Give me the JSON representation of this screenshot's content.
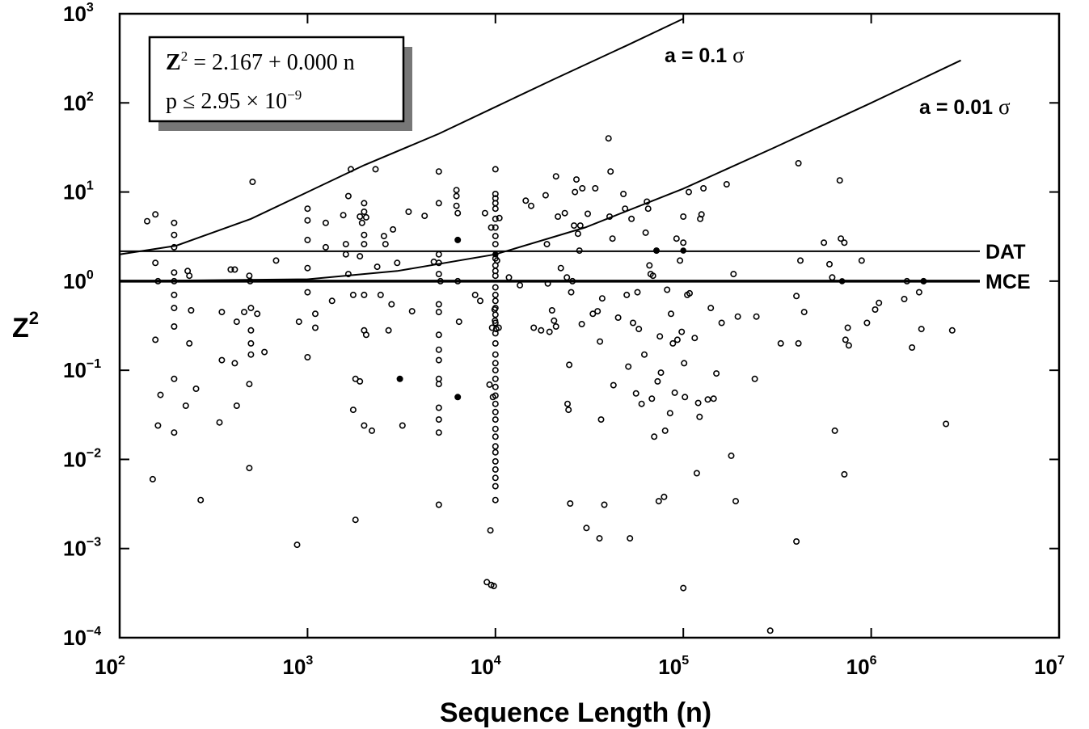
{
  "chart_data": {
    "type": "scatter",
    "x_scale": "log",
    "y_scale": "log",
    "xlim": [
      100,
      10000000
    ],
    "ylim": [
      0.0001,
      1000
    ],
    "xlabel": "Sequence Length   (n)",
    "ylabel_base": "Z",
    "ylabel_sup": "2",
    "x_ticks": [
      {
        "value": 100,
        "base": "10",
        "exp": "2"
      },
      {
        "value": 1000,
        "base": "10",
        "exp": "3"
      },
      {
        "value": 10000,
        "base": "10",
        "exp": "4"
      },
      {
        "value": 100000,
        "base": "10",
        "exp": "5"
      },
      {
        "value": 1000000,
        "base": "10",
        "exp": "6"
      },
      {
        "value": 10000000,
        "base": "10",
        "exp": "7"
      }
    ],
    "y_ticks": [
      {
        "value": 1000,
        "base": "10",
        "exp": "3"
      },
      {
        "value": 100,
        "base": "10",
        "exp": "2"
      },
      {
        "value": 10,
        "base": "10",
        "exp": "1"
      },
      {
        "value": 1,
        "base": "10",
        "exp": "0"
      },
      {
        "value": 0.1,
        "base": "10",
        "exp": "−1"
      },
      {
        "value": 0.01,
        "base": "10",
        "exp": "−2"
      },
      {
        "value": 0.001,
        "base": "10",
        "exp": "−3"
      },
      {
        "value": 0.0001,
        "base": "10",
        "exp": "−4"
      }
    ],
    "reference_lines": [
      {
        "label": "DAT",
        "y": 2.167
      },
      {
        "label": "MCE",
        "y": 1.0
      }
    ],
    "curves": [
      {
        "label": "a = 0.1",
        "sigma": "σ",
        "points": [
          [
            100,
            2.0
          ],
          [
            200,
            2.5
          ],
          [
            500,
            5
          ],
          [
            1000,
            10
          ],
          [
            2000,
            20
          ],
          [
            5000,
            45
          ],
          [
            10000,
            90
          ],
          [
            20000,
            180
          ],
          [
            50000,
            440
          ],
          [
            100000,
            880
          ]
        ]
      },
      {
        "label": "a = 0.01",
        "sigma": "σ",
        "points": [
          [
            100,
            1.0
          ],
          [
            1000,
            1.05
          ],
          [
            3000,
            1.3
          ],
          [
            10000,
            2.0
          ],
          [
            30000,
            4.0
          ],
          [
            100000,
            10.9
          ],
          [
            300000,
            31
          ],
          [
            1000000,
            100
          ],
          [
            3000000,
            300
          ]
        ]
      }
    ],
    "fit_box": {
      "line1_base": "Z",
      "line1_sup": "2",
      "line1_rest": " = 2.167 + 0.000 n",
      "line2_pre": "p ≤ 2.95 × 10",
      "line2_sup": "−9"
    },
    "points": [
      [
        140,
        4.7
      ],
      [
        155,
        5.6
      ],
      [
        155,
        1.6
      ],
      [
        160,
        1.0
      ],
      [
        155,
        0.22
      ],
      [
        165,
        0.053
      ],
      [
        160,
        0.024
      ],
      [
        150,
        0.006
      ],
      [
        195,
        4.5
      ],
      [
        195,
        3.3
      ],
      [
        195,
        2.4
      ],
      [
        195,
        1.25
      ],
      [
        195,
        1.0
      ],
      [
        195,
        0.7
      ],
      [
        195,
        0.5
      ],
      [
        195,
        0.31
      ],
      [
        195,
        0.08
      ],
      [
        195,
        0.02
      ],
      [
        230,
        1.3
      ],
      [
        235,
        1.15
      ],
      [
        240,
        0.47
      ],
      [
        235,
        0.2
      ],
      [
        225,
        0.04
      ],
      [
        255,
        0.062
      ],
      [
        270,
        0.0035
      ],
      [
        350,
        0.45
      ],
      [
        350,
        0.13
      ],
      [
        340,
        0.026
      ],
      [
        390,
        1.35
      ],
      [
        410,
        1.35
      ],
      [
        420,
        0.35
      ],
      [
        410,
        0.12
      ],
      [
        420,
        0.04
      ],
      [
        460,
        0.45
      ],
      [
        490,
        1.15
      ],
      [
        495,
        1.0
      ],
      [
        500,
        0.5
      ],
      [
        500,
        0.28
      ],
      [
        500,
        0.2
      ],
      [
        500,
        0.15
      ],
      [
        490,
        0.07
      ],
      [
        490,
        0.008
      ],
      [
        510,
        13
      ],
      [
        540,
        0.43
      ],
      [
        590,
        0.16
      ],
      [
        680,
        1.7
      ],
      [
        880,
        0.0011
      ],
      [
        900,
        0.35
      ],
      [
        1000,
        6.5
      ],
      [
        1000,
        4.8
      ],
      [
        1000,
        2.9
      ],
      [
        1000,
        1.4
      ],
      [
        1000,
        0.75
      ],
      [
        1000,
        0.14
      ],
      [
        1100,
        0.43
      ],
      [
        1100,
        0.3
      ],
      [
        1250,
        4.5
      ],
      [
        1250,
        2.4
      ],
      [
        1350,
        0.6
      ],
      [
        1550,
        5.5
      ],
      [
        1600,
        2.0
      ],
      [
        1650,
        9.0
      ],
      [
        1600,
        2.6
      ],
      [
        1650,
        1.2
      ],
      [
        1700,
        18
      ],
      [
        1750,
        0.036
      ],
      [
        1750,
        0.7
      ],
      [
        1800,
        0.08
      ],
      [
        1800,
        0.0021
      ],
      [
        1900,
        5.3
      ],
      [
        1900,
        1.9
      ],
      [
        1900,
        0.075
      ],
      [
        1950,
        4.5
      ],
      [
        2000,
        7.5
      ],
      [
        2000,
        6.0
      ],
      [
        2000,
        3.3
      ],
      [
        2000,
        2.6
      ],
      [
        2000,
        0.7
      ],
      [
        2000,
        0.28
      ],
      [
        2000,
        0.024
      ],
      [
        2050,
        5.2
      ],
      [
        2050,
        0.25
      ],
      [
        2200,
        0.021
      ],
      [
        2300,
        18
      ],
      [
        2350,
        1.45
      ],
      [
        2450,
        0.7
      ],
      [
        2550,
        3.2
      ],
      [
        2600,
        2.6
      ],
      [
        2700,
        0.28
      ],
      [
        2800,
        0.55
      ],
      [
        2850,
        3.8
      ],
      [
        3000,
        1.6
      ],
      [
        3100,
        0.08
      ],
      [
        3200,
        0.024
      ],
      [
        3450,
        6
      ],
      [
        3600,
        0.46
      ],
      [
        4200,
        5.4
      ],
      [
        4700,
        1.65
      ],
      [
        5000,
        17
      ],
      [
        5000,
        7.5
      ],
      [
        5000,
        2.0
      ],
      [
        5000,
        1.6
      ],
      [
        5000,
        1.2
      ],
      [
        5000,
        0.55
      ],
      [
        5000,
        0.45
      ],
      [
        5000,
        0.25
      ],
      [
        5000,
        0.17
      ],
      [
        5000,
        0.13
      ],
      [
        5000,
        0.08
      ],
      [
        5000,
        0.07
      ],
      [
        5000,
        0.038
      ],
      [
        5000,
        0.028
      ],
      [
        5000,
        0.02
      ],
      [
        5000,
        0.0031
      ],
      [
        5100,
        1.0
      ],
      [
        6200,
        10.5
      ],
      [
        6200,
        9.0
      ],
      [
        6200,
        7.0
      ],
      [
        6300,
        5.8
      ],
      [
        6300,
        2.9
      ],
      [
        6300,
        1.0
      ],
      [
        6300,
        0.05
      ],
      [
        6400,
        0.35
      ],
      [
        7800,
        0.7
      ],
      [
        8300,
        0.6
      ],
      [
        8800,
        5.8
      ],
      [
        9000,
        0.00042
      ],
      [
        9300,
        0.069
      ],
      [
        9400,
        0.0016
      ],
      [
        9500,
        4.0
      ],
      [
        9500,
        0.00039
      ],
      [
        9600,
        0.3
      ],
      [
        9700,
        0.05
      ],
      [
        9800,
        0.00038
      ],
      [
        9900,
        0.48
      ],
      [
        9950,
        0.36
      ],
      [
        10000,
        18
      ],
      [
        10100,
        0.29
      ],
      [
        10200,
        1.7
      ],
      [
        10400,
        0.3
      ],
      [
        10500,
        5.1
      ],
      [
        11800,
        1.1
      ],
      [
        13500,
        0.9
      ],
      [
        14500,
        8
      ],
      [
        15500,
        7
      ],
      [
        16000,
        0.3
      ],
      [
        17500,
        0.28
      ],
      [
        18500,
        9.2
      ],
      [
        18800,
        2.6
      ],
      [
        19000,
        0.94
      ],
      [
        19400,
        0.27
      ],
      [
        20000,
        0.47
      ],
      [
        20500,
        0.36
      ],
      [
        21000,
        0.31
      ],
      [
        21000,
        15
      ],
      [
        21500,
        5.3
      ],
      [
        22300,
        1.4
      ],
      [
        23400,
        5.8
      ],
      [
        24000,
        1.1
      ],
      [
        24200,
        0.042
      ],
      [
        24500,
        0.036
      ],
      [
        24700,
        0.115
      ],
      [
        25000,
        0.0032
      ],
      [
        25300,
        0.75
      ],
      [
        25700,
        1.0
      ],
      [
        26200,
        4.2
      ],
      [
        26500,
        10
      ],
      [
        27000,
        13.8
      ],
      [
        27500,
        3.4
      ],
      [
        28000,
        2.2
      ],
      [
        28300,
        4.2
      ],
      [
        28800,
        0.33
      ],
      [
        29000,
        11
      ],
      [
        30500,
        0.0017
      ],
      [
        31000,
        5.7
      ],
      [
        33000,
        0.43
      ],
      [
        34000,
        11
      ],
      [
        35000,
        0.46
      ],
      [
        35800,
        0.0013
      ],
      [
        36000,
        0.21
      ],
      [
        36500,
        0.028
      ],
      [
        37000,
        0.64
      ],
      [
        38000,
        0.0031
      ],
      [
        40000,
        40
      ],
      [
        40500,
        5.3
      ],
      [
        41000,
        17
      ],
      [
        42000,
        3.0
      ],
      [
        42500,
        0.068
      ],
      [
        45000,
        0.39
      ],
      [
        48000,
        9.5
      ],
      [
        49000,
        6.5
      ],
      [
        50000,
        0.7
      ],
      [
        51000,
        0.11
      ],
      [
        52000,
        0.0013
      ],
      [
        53000,
        5
      ],
      [
        54000,
        0.34
      ],
      [
        56000,
        0.055
      ],
      [
        57000,
        0.75
      ],
      [
        58000,
        0.29
      ],
      [
        60000,
        0.042
      ],
      [
        62000,
        0.15
      ],
      [
        63000,
        3.5
      ],
      [
        64000,
        7.8
      ],
      [
        65000,
        6.5
      ],
      [
        66000,
        1.5
      ],
      [
        67000,
        1.2
      ],
      [
        68000,
        0.048
      ],
      [
        69000,
        1.15
      ],
      [
        70000,
        0.018
      ],
      [
        72000,
        2.2
      ],
      [
        73000,
        0.075
      ],
      [
        74000,
        0.0034
      ],
      [
        75000,
        0.24
      ],
      [
        76000,
        0.094
      ],
      [
        79000,
        0.0038
      ],
      [
        80000,
        0.021
      ],
      [
        82000,
        0.8
      ],
      [
        85000,
        0.033
      ],
      [
        86000,
        0.43
      ],
      [
        88000,
        0.2
      ],
      [
        90000,
        0.056
      ],
      [
        92000,
        3.0
      ],
      [
        93000,
        0.22
      ],
      [
        96000,
        1.7
      ],
      [
        98000,
        0.27
      ],
      [
        100000,
        5.3
      ],
      [
        100000,
        2.7
      ],
      [
        100000,
        0.00036
      ],
      [
        101000,
        0.12
      ],
      [
        102000,
        0.05
      ],
      [
        105000,
        0.7
      ],
      [
        107000,
        10
      ],
      [
        108000,
        0.73
      ],
      [
        115000,
        0.23
      ],
      [
        118000,
        0.007
      ],
      [
        120000,
        0.043
      ],
      [
        122000,
        0.03
      ],
      [
        123000,
        5
      ],
      [
        125000,
        5.6
      ],
      [
        128000,
        11
      ],
      [
        135000,
        0.047
      ],
      [
        140000,
        0.5
      ],
      [
        145000,
        0.048
      ],
      [
        150000,
        0.092
      ],
      [
        160000,
        0.34
      ],
      [
        170000,
        12.2
      ],
      [
        180000,
        0.011
      ],
      [
        185000,
        1.2
      ],
      [
        190000,
        0.0034
      ],
      [
        195000,
        0.4
      ],
      [
        240000,
        0.08
      ],
      [
        245000,
        0.4
      ],
      [
        290000,
        0.00012
      ],
      [
        330000,
        0.2
      ],
      [
        400000,
        0.0012
      ],
      [
        400000,
        0.68
      ],
      [
        410000,
        0.2
      ],
      [
        410000,
        21
      ],
      [
        420000,
        1.7
      ],
      [
        440000,
        0.45
      ],
      [
        560000,
        2.7
      ],
      [
        600000,
        1.55
      ],
      [
        620000,
        1.1
      ],
      [
        640000,
        0.021
      ],
      [
        680000,
        13.5
      ],
      [
        690000,
        3.0
      ],
      [
        720000,
        0.0068
      ],
      [
        720000,
        2.7
      ],
      [
        730000,
        0.22
      ],
      [
        750000,
        0.3
      ],
      [
        760000,
        0.19
      ],
      [
        890000,
        1.7
      ],
      [
        950000,
        0.34
      ],
      [
        1050000,
        0.48
      ],
      [
        1100000,
        0.57
      ],
      [
        1500000,
        0.63
      ],
      [
        1550000,
        1.0
      ],
      [
        1650000,
        0.18
      ],
      [
        1800000,
        0.75
      ],
      [
        1850000,
        0.29
      ],
      [
        1900000,
        1.0
      ],
      [
        2500000,
        0.025
      ],
      [
        2700000,
        0.28
      ]
    ],
    "filled_points": [
      [
        3100,
        0.08
      ],
      [
        6300,
        2.9
      ],
      [
        6300,
        0.05
      ],
      [
        10000,
        2.0
      ],
      [
        72000,
        2.2
      ],
      [
        100000,
        2.2
      ],
      [
        700000,
        1.0
      ],
      [
        1900000,
        1.0
      ]
    ],
    "stacked_points": [
      [
        10000,
        6.5
      ],
      [
        10000,
        5.0
      ],
      [
        10000,
        4.0
      ],
      [
        10000,
        3.2
      ],
      [
        10000,
        2.6
      ],
      [
        10000,
        1.8
      ],
      [
        10000,
        1.5
      ],
      [
        10000,
        1.3
      ],
      [
        10000,
        1.15
      ],
      [
        10000,
        0.85
      ],
      [
        10000,
        0.7
      ],
      [
        10000,
        0.6
      ],
      [
        10000,
        0.5
      ],
      [
        10000,
        0.42
      ],
      [
        10000,
        0.34
      ],
      [
        10000,
        0.26
      ],
      [
        10000,
        0.2
      ],
      [
        10000,
        0.15
      ],
      [
        10000,
        0.12
      ],
      [
        10000,
        0.1
      ],
      [
        10000,
        0.08
      ],
      [
        10000,
        0.065
      ],
      [
        10000,
        0.052
      ],
      [
        10000,
        0.042
      ],
      [
        10000,
        0.034
      ],
      [
        10000,
        0.028
      ],
      [
        10000,
        0.022
      ],
      [
        10000,
        0.018
      ],
      [
        10000,
        0.014
      ],
      [
        10000,
        0.012
      ],
      [
        10000,
        0.0095
      ],
      [
        10000,
        0.0077
      ],
      [
        10000,
        0.0062
      ],
      [
        10000,
        0.005
      ],
      [
        10000,
        0.0035
      ],
      [
        10000,
        8.5
      ],
      [
        10000,
        7.5
      ],
      [
        10000,
        9.5
      ]
    ]
  }
}
